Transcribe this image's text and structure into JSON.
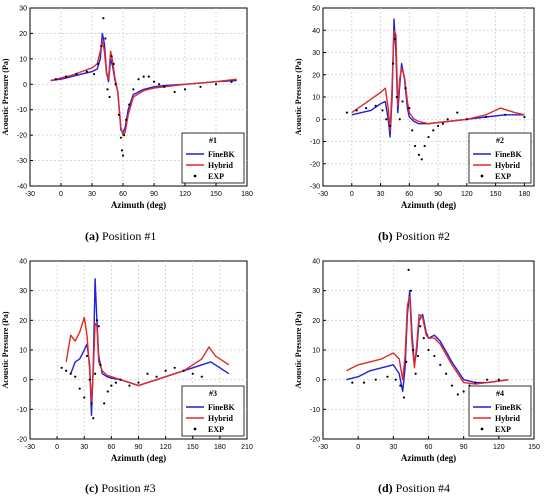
{
  "chart_data": [
    {
      "type": "line",
      "caption_id": "(a)",
      "caption_text": " Position #1",
      "xlabel": "Azimuth (deg)",
      "ylabel": "Acoustic Pressure (Pa)",
      "xlim": [
        -30,
        180
      ],
      "ylim": [
        -40,
        30
      ],
      "xticks": [
        -30,
        0,
        30,
        60,
        90,
        120,
        150,
        180
      ],
      "yticks": [
        -40,
        -30,
        -20,
        -10,
        0,
        10,
        20,
        30
      ],
      "grid": true,
      "legend_position": "lower-right",
      "legend_title": "#1",
      "series": [
        {
          "name": "FineBK",
          "color": "#1f1fdc",
          "style": "line",
          "x": [
            -10,
            0,
            10,
            20,
            30,
            35,
            38,
            40,
            42,
            44,
            46,
            48,
            50,
            52,
            55,
            58,
            60,
            62,
            65,
            70,
            80,
            90,
            100,
            120,
            150,
            170
          ],
          "y": [
            1.5,
            2,
            3,
            4,
            5,
            6,
            10,
            20,
            16,
            5,
            1,
            10,
            7,
            2,
            -3,
            -18,
            -19,
            -17,
            -10,
            -4,
            -2,
            -1,
            -0.5,
            0,
            1,
            1.5
          ]
        },
        {
          "name": "Hybrid",
          "color": "#e02a2a",
          "style": "line",
          "x": [
            -10,
            0,
            10,
            20,
            30,
            35,
            38,
            40,
            42,
            44,
            46,
            48,
            50,
            52,
            55,
            58,
            60,
            62,
            65,
            70,
            80,
            90,
            100,
            120,
            150,
            170
          ],
          "y": [
            1.5,
            2.5,
            3.5,
            5,
            6.5,
            8,
            13,
            17,
            13,
            4,
            2,
            13,
            9,
            3,
            -3,
            -17,
            -20,
            -19,
            -12,
            -5,
            -2.5,
            -1.5,
            -1,
            0,
            1,
            2
          ]
        },
        {
          "name": "EXP",
          "color": "#000000",
          "style": "dots",
          "x": [
            -5,
            5,
            15,
            25,
            32,
            36,
            39,
            41,
            43,
            45,
            47,
            49,
            51,
            53,
            56,
            58,
            59,
            60,
            61,
            63,
            66,
            70,
            75,
            80,
            85,
            90,
            95,
            100,
            110,
            120,
            135,
            150,
            165
          ],
          "y": [
            2,
            3,
            4,
            5,
            4,
            8,
            15,
            26,
            18,
            -2,
            -5,
            11,
            8,
            0,
            -12,
            -21,
            -26,
            -28,
            -20,
            -14,
            -8,
            -2,
            2,
            3,
            3,
            1,
            0,
            -1,
            -3,
            -2,
            -1,
            0,
            1
          ]
        }
      ]
    },
    {
      "type": "line",
      "caption_id": "(b)",
      "caption_text": " Position #2",
      "xlabel": "Azimuth (deg)",
      "ylabel": "Acoustic Pressure (Pa)",
      "xlim": [
        -30,
        190
      ],
      "ylim": [
        -30,
        50
      ],
      "xticks": [
        -30,
        0,
        30,
        60,
        90,
        120,
        150,
        180
      ],
      "yticks": [
        -30,
        -20,
        -10,
        0,
        10,
        20,
        30,
        40,
        50
      ],
      "grid": true,
      "legend_position": "lower-right",
      "legend_title": "#2",
      "series": [
        {
          "name": "FineBK",
          "color": "#1f1fdc",
          "style": "line",
          "x": [
            0,
            10,
            20,
            30,
            35,
            38,
            40,
            42,
            44,
            46,
            48,
            50,
            52,
            55,
            58,
            60,
            65,
            70,
            80,
            100,
            120,
            140,
            160,
            180
          ],
          "y": [
            2,
            3,
            4,
            7,
            8,
            0,
            -8,
            10,
            45,
            30,
            3,
            15,
            25,
            18,
            5,
            1,
            -1,
            -2,
            -2,
            -1,
            0,
            1,
            2,
            2
          ]
        },
        {
          "name": "Hybrid",
          "color": "#e02a2a",
          "style": "line",
          "x": [
            0,
            10,
            20,
            30,
            35,
            38,
            40,
            42,
            44,
            46,
            48,
            50,
            52,
            55,
            58,
            60,
            65,
            70,
            80,
            100,
            120,
            140,
            155,
            170,
            180
          ],
          "y": [
            3,
            6,
            9,
            12,
            14,
            5,
            -5,
            15,
            40,
            38,
            6,
            18,
            23,
            19,
            8,
            3,
            0,
            -1,
            -2,
            -1,
            0,
            2,
            5,
            3,
            2
          ]
        },
        {
          "name": "EXP",
          "color": "#000000",
          "style": "dots",
          "x": [
            -5,
            5,
            15,
            25,
            32,
            36,
            40,
            43,
            45,
            47,
            50,
            53,
            56,
            60,
            63,
            66,
            70,
            73,
            76,
            80,
            85,
            90,
            95,
            100,
            110,
            120,
            140,
            160,
            180
          ],
          "y": [
            3,
            4,
            5,
            6,
            4,
            0,
            -3,
            25,
            36,
            10,
            0,
            8,
            14,
            5,
            -5,
            -12,
            -16,
            -18,
            -12,
            -8,
            -5,
            -3,
            -2,
            0,
            3,
            0,
            1,
            2,
            1
          ]
        }
      ]
    },
    {
      "type": "line",
      "caption_id": "(c)",
      "caption_text": " Position #3",
      "xlabel": "Azimuth (deg)",
      "ylabel": "Acoustic Pressure (Pa)",
      "xlim": [
        -30,
        210
      ],
      "ylim": [
        -20,
        40
      ],
      "xticks": [
        -30,
        0,
        30,
        60,
        90,
        120,
        150,
        180,
        210
      ],
      "yticks": [
        -20,
        -10,
        0,
        10,
        20,
        30,
        40
      ],
      "grid": true,
      "legend_position": "lower-right",
      "legend_title": "#3",
      "series": [
        {
          "name": "FineBK",
          "color": "#1f1fdc",
          "style": "line",
          "x": [
            15,
            20,
            25,
            30,
            33,
            36,
            38,
            40,
            42,
            44,
            46,
            50,
            55,
            60,
            70,
            80,
            90,
            100,
            110,
            120,
            130,
            140,
            150,
            160,
            170,
            180,
            190
          ],
          "y": [
            2,
            6,
            7,
            10,
            12,
            5,
            -12,
            5,
            34,
            20,
            8,
            2,
            1,
            0.5,
            0,
            -1,
            -2,
            -1,
            0,
            1,
            2,
            3,
            4,
            5,
            6,
            4,
            2
          ]
        },
        {
          "name": "Hybrid",
          "color": "#e02a2a",
          "style": "line",
          "x": [
            10,
            15,
            20,
            25,
            30,
            33,
            36,
            38,
            40,
            42,
            44,
            46,
            50,
            55,
            60,
            70,
            80,
            90,
            100,
            110,
            120,
            130,
            140,
            150,
            160,
            168,
            175,
            180,
            190
          ],
          "y": [
            6,
            15,
            13,
            16,
            21,
            15,
            3,
            -8,
            3,
            19,
            18,
            6,
            3,
            1.5,
            1,
            0,
            -1,
            -2,
            -1,
            0,
            1,
            2,
            3,
            5,
            7,
            11,
            8,
            7,
            5
          ]
        },
        {
          "name": "EXP",
          "color": "#000000",
          "style": "dots",
          "x": [
            5,
            10,
            15,
            20,
            25,
            30,
            33,
            36,
            38,
            40,
            42,
            44,
            46,
            48,
            52,
            56,
            60,
            65,
            70,
            80,
            90,
            100,
            110,
            120,
            130,
            140,
            150,
            160
          ],
          "y": [
            4,
            3,
            2,
            1,
            -3,
            -6,
            8,
            0,
            -8,
            -13,
            2,
            20,
            18,
            5,
            -8,
            -4,
            -2,
            -1,
            0,
            -2,
            -1,
            2,
            1,
            3,
            4,
            3,
            2,
            1
          ]
        }
      ]
    },
    {
      "type": "line",
      "caption_id": "(d)",
      "caption_text": " Position #4",
      "xlabel": "Azimuth (deg)",
      "ylabel": "Acoustic Pressure (Pa)",
      "xlim": [
        -30,
        150
      ],
      "ylim": [
        -20,
        40
      ],
      "xticks": [
        -30,
        0,
        30,
        60,
        90,
        120,
        150
      ],
      "yticks": [
        -20,
        -10,
        0,
        10,
        20,
        30,
        40
      ],
      "grid": true,
      "legend_position": "lower-right",
      "legend_title": "#4",
      "series": [
        {
          "name": "FineBK",
          "color": "#1f1fdc",
          "style": "line",
          "x": [
            -10,
            0,
            10,
            20,
            30,
            35,
            38,
            40,
            42,
            44,
            46,
            48,
            50,
            52,
            55,
            58,
            60,
            65,
            70,
            80,
            90,
            100,
            110,
            120,
            128
          ],
          "y": [
            0,
            1,
            3,
            4,
            5,
            2,
            -4,
            4,
            22,
            30,
            15,
            5,
            10,
            20,
            22,
            16,
            14,
            15,
            13,
            6,
            0,
            -1,
            -1,
            -0.5,
            0
          ]
        },
        {
          "name": "Hybrid",
          "color": "#e02a2a",
          "style": "line",
          "x": [
            -10,
            0,
            10,
            20,
            30,
            35,
            38,
            40,
            42,
            44,
            46,
            48,
            50,
            52,
            55,
            58,
            60,
            65,
            70,
            80,
            90,
            100,
            110,
            120,
            128
          ],
          "y": [
            3,
            5,
            6,
            7,
            9,
            7,
            0,
            8,
            25,
            28,
            12,
            4,
            12,
            22,
            21,
            15,
            14,
            14,
            12,
            5,
            -1,
            -1.5,
            -1,
            -0.5,
            0
          ]
        },
        {
          "name": "EXP",
          "color": "#000000",
          "style": "dots",
          "x": [
            -5,
            5,
            15,
            25,
            32,
            36,
            39,
            41,
            43,
            45,
            47,
            49,
            51,
            53,
            56,
            60,
            65,
            70,
            75,
            80,
            85,
            90,
            95,
            100,
            110,
            120
          ],
          "y": [
            -1,
            -1,
            0,
            1,
            0,
            -2,
            -6,
            6,
            37,
            30,
            10,
            2,
            8,
            18,
            14,
            10,
            8,
            5,
            2,
            -2,
            -5,
            -4,
            -2,
            -1,
            0,
            0
          ]
        }
      ]
    }
  ]
}
